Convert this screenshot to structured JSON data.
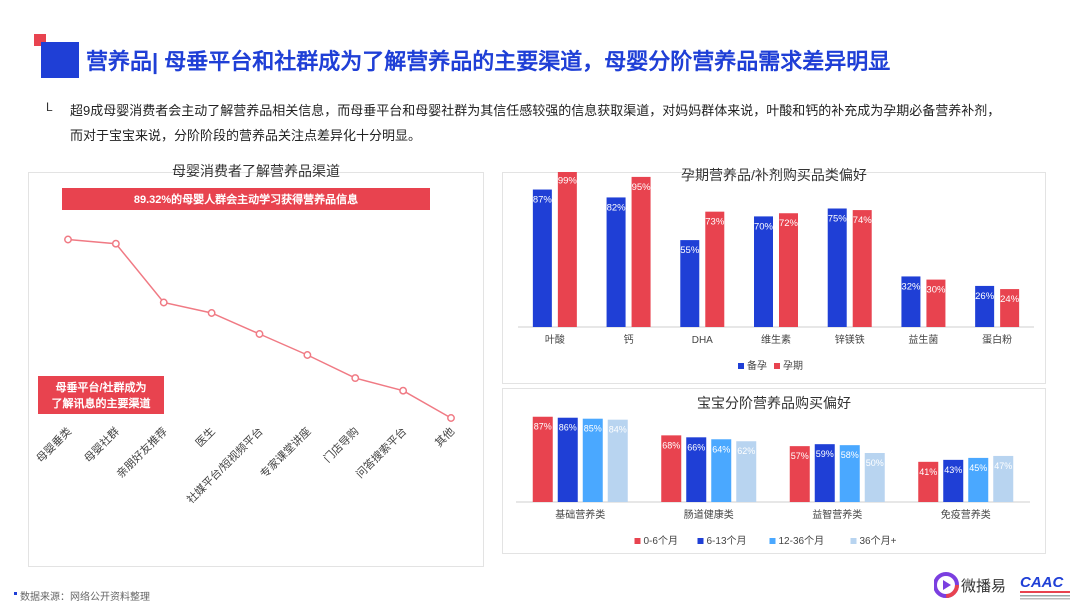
{
  "header": {
    "title": "营养品| 母垂平台和社群成为了解营养品的主要渠道，母婴分阶营养品需求差异明显"
  },
  "summary": {
    "mark": "L",
    "line1": "超9成母婴消费者会主动了解营养品相关信息，而母垂平台和母婴社群为其信任感较强的信息获取渠道，对妈妈群体来说，叶酸和钙的补充成为孕期必备营养补剂，",
    "line2": "而对于宝宝来说，分阶阶段的营养品关注点差异化十分明显。"
  },
  "colors": {
    "blue": "#1f3fd6",
    "red": "#e8434f",
    "pink_line": "#f07a84",
    "blue2": "#1f7bff",
    "blue3": "#4aa8ff",
    "blue4": "#b8d4f0"
  },
  "footer": {
    "source": "数据来源：网络公开资料整理",
    "logo_text": "微播易",
    "brand_text": "CAAC"
  },
  "chart_data": [
    {
      "type": "line",
      "title": "母婴消费者了解营养品渠道",
      "banner": "89.32%的母婴人群会主动学习获得营养品信息",
      "annotation_line1": "母垂平台/社群成为",
      "annotation_line2": "了解讯息的主要渠道",
      "categories": [
        "母婴垂类",
        "母婴社群",
        "亲朋好友推荐",
        "医生",
        "社媒平台/短视频平台",
        "专家课堂讲座",
        "门店导购",
        "问答搜索平台",
        "其他"
      ],
      "values": [
        85,
        83,
        55,
        50,
        40,
        30,
        19,
        13,
        0
      ],
      "ylim": [
        0,
        100
      ]
    },
    {
      "type": "bar",
      "title": "孕期营养品/补剂购买品类偏好",
      "categories": [
        "叶酸",
        "钙",
        "DHA",
        "维生素",
        "锌镁铁",
        "益生菌",
        "蛋白粉"
      ],
      "series": [
        {
          "name": "备孕",
          "values": [
            87,
            82,
            55,
            70,
            75,
            32,
            26
          ],
          "labels": [
            "87%",
            "82%",
            "55%",
            "70%",
            "75%",
            "32%",
            "26%"
          ]
        },
        {
          "name": "孕期",
          "values": [
            99,
            95,
            73,
            72,
            74,
            30,
            24
          ],
          "labels": [
            "99%",
            "95%",
            "73%",
            "72%",
            "74%",
            "30%",
            "24%"
          ]
        }
      ],
      "ylim": [
        0,
        100
      ]
    },
    {
      "type": "bar",
      "title": "宝宝分阶营养品购买偏好",
      "categories": [
        "基础营养类",
        "肠道健康类",
        "益智营养类",
        "免疫营养类"
      ],
      "series": [
        {
          "name": "0-6个月",
          "values": [
            87,
            68,
            57,
            41
          ],
          "labels": [
            "87%",
            "68%",
            "57%",
            "41%"
          ]
        },
        {
          "name": "6-13个月",
          "values": [
            86,
            66,
            59,
            43
          ],
          "labels": [
            "86%",
            "66%",
            "59%",
            "43%"
          ]
        },
        {
          "name": "12-36个月",
          "values": [
            85,
            64,
            58,
            45
          ],
          "labels": [
            "85%",
            "64%",
            "58%",
            "45%"
          ]
        },
        {
          "name": "36个月+",
          "values": [
            84,
            62,
            50,
            47
          ],
          "labels": [
            "84%",
            "62%",
            "50%",
            "47%"
          ]
        }
      ],
      "ylim": [
        0,
        100
      ]
    }
  ]
}
